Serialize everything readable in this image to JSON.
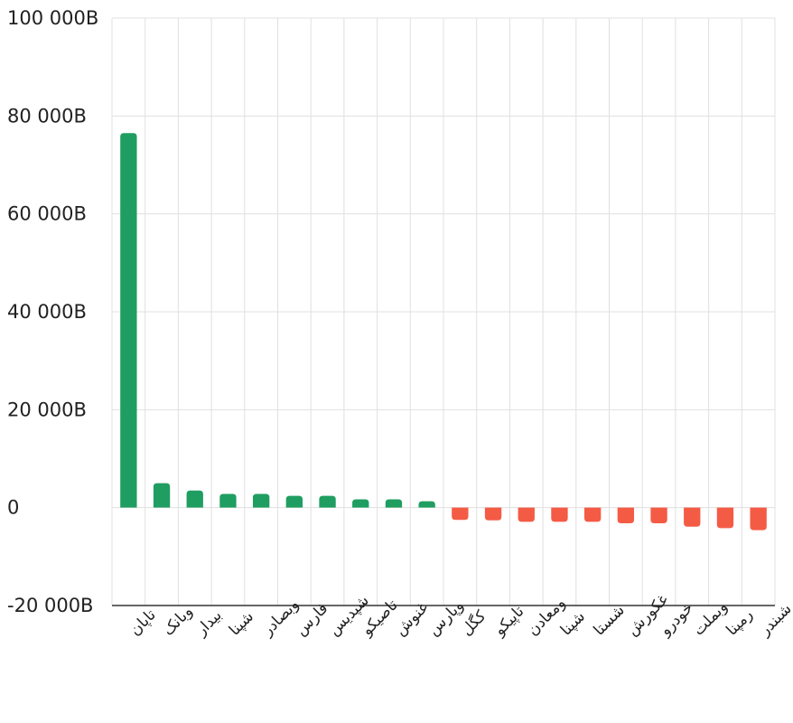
{
  "chart_data": {
    "type": "bar",
    "categories": [
      "تاپان",
      "وبانک",
      "بیدار",
      "شپنا",
      "وبصادر",
      "فارس",
      "شپدیس",
      "تاصیکو",
      "غنوش",
      "وپارس",
      "کگل",
      "تاپیکو",
      "ومعادن",
      "شپنا",
      "شستا",
      "غکورش",
      "خودرو",
      "وبملت",
      "رمپنا",
      "شبندر"
    ],
    "values": [
      76500,
      5000,
      3500,
      2800,
      2800,
      2400,
      2400,
      1700,
      1700,
      1300,
      -2500,
      -2600,
      -2900,
      -2900,
      -2900,
      -3200,
      -3200,
      -3900,
      -4200,
      -4600
    ],
    "ylim": [
      -20000,
      100000
    ],
    "yticks": [
      100000,
      80000,
      60000,
      40000,
      20000,
      0,
      -20000
    ],
    "ytick_labels": [
      "100 000B",
      "80 000B",
      "60 000B",
      "40 000B",
      "20 000B",
      "0",
      "-20 000B"
    ],
    "colors": {
      "positive": "#209e62",
      "negative": "#f45b45",
      "grid": "#e0e0e0",
      "axis": "#333333"
    },
    "grid": true
  }
}
